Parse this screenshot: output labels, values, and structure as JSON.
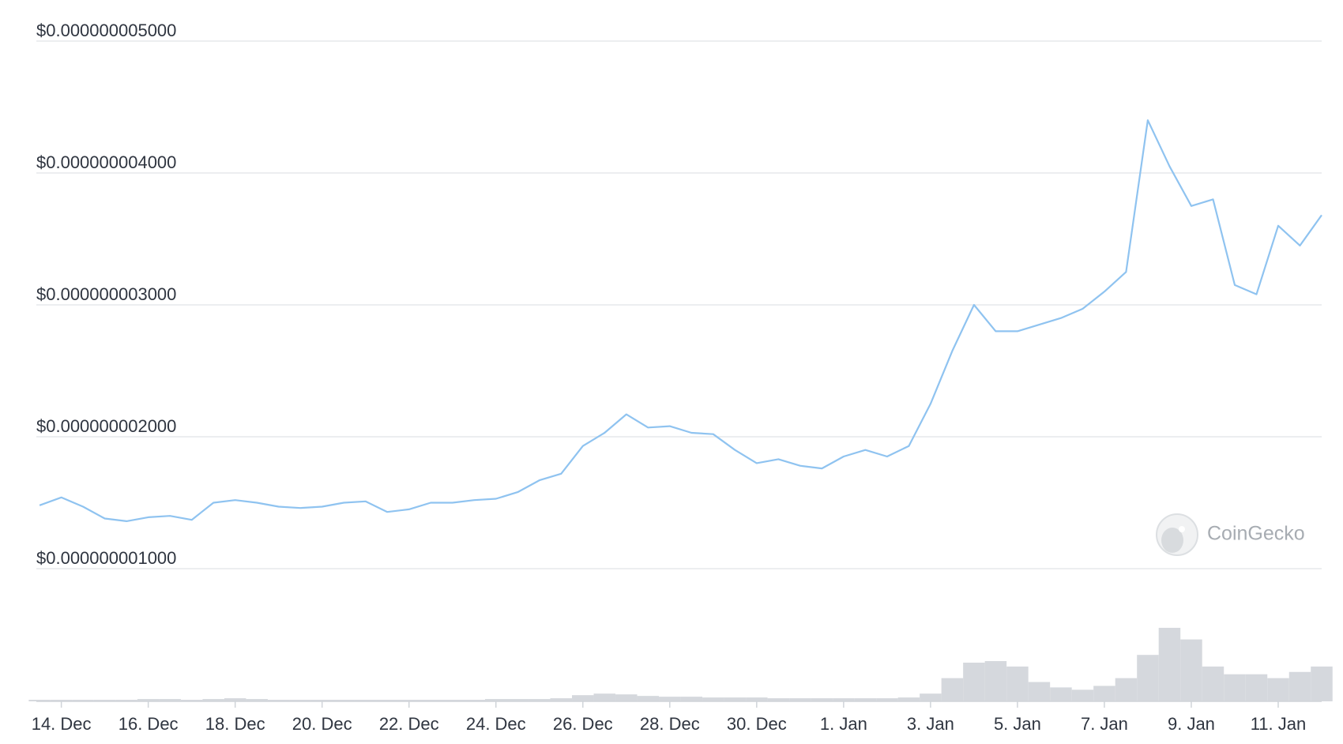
{
  "chart_data": {
    "type": "line",
    "categories": [
      null,
      "14. Dec",
      null,
      null,
      null,
      "16. Dec",
      null,
      null,
      null,
      "18. Dec",
      null,
      null,
      null,
      "20. Dec",
      null,
      null,
      null,
      "22. Dec",
      null,
      null,
      null,
      "24. Dec",
      null,
      null,
      null,
      "26. Dec",
      null,
      null,
      null,
      "28. Dec",
      null,
      null,
      null,
      "30. Dec",
      null,
      null,
      null,
      "1. Jan",
      null,
      null,
      null,
      "3. Jan",
      null,
      null,
      null,
      "5. Jan",
      null,
      null,
      null,
      "7. Jan",
      null,
      null,
      null,
      "9. Jan",
      null,
      null,
      null,
      "11. Jan",
      null,
      null
    ],
    "series": [
      {
        "color": "#8fc3f0",
        "values": [
          1.48e-09,
          1.54e-09,
          1.47e-09,
          1.38e-09,
          1.36e-09,
          1.39e-09,
          1.4e-09,
          1.37e-09,
          1.5e-09,
          1.52e-09,
          1.5e-09,
          1.47e-09,
          1.46e-09,
          1.47e-09,
          1.5e-09,
          1.51e-09,
          1.43e-09,
          1.45e-09,
          1.5e-09,
          1.5e-09,
          1.52e-09,
          1.53e-09,
          1.58e-09,
          1.67e-09,
          1.72e-09,
          1.93e-09,
          2.03e-09,
          2.17e-09,
          2.07e-09,
          2.08e-09,
          2.03e-09,
          2.02e-09,
          1.9e-09,
          1.8e-09,
          1.83e-09,
          1.78e-09,
          1.76e-09,
          1.85e-09,
          1.9e-09,
          1.85e-09,
          1.93e-09,
          2.25e-09,
          2.65e-09,
          3e-09,
          2.8e-09,
          2.8e-09,
          2.85e-09,
          2.9e-09,
          2.97e-09,
          3.1e-09,
          3.25e-09,
          4.4e-09,
          4.05e-09,
          3.75e-09,
          3.8e-09,
          3.15e-09,
          3.08e-09,
          3.6e-09,
          3.45e-09,
          3.68e-09
        ]
      }
    ],
    "volume": {
      "color": "#d5d8dd",
      "ylim": [
        0,
        100
      ],
      "values": [
        2,
        2,
        2,
        2,
        2,
        3,
        3,
        2,
        3,
        4,
        3,
        2,
        2,
        2,
        2,
        2,
        2,
        2,
        2,
        2,
        2,
        3,
        3,
        3,
        4,
        8,
        10,
        9,
        7,
        6,
        6,
        5,
        5,
        5,
        4,
        4,
        4,
        4,
        4,
        4,
        5,
        10,
        30,
        50,
        52,
        45,
        25,
        18,
        15,
        20,
        30,
        60,
        95,
        80,
        45,
        35,
        35,
        30,
        38,
        45
      ]
    },
    "ylim": [
      1e-09,
      5e-09
    ],
    "yticks": [
      {
        "value": 1e-09,
        "label": "$0.000000001000"
      },
      {
        "value": 2e-09,
        "label": "$0.000000002000"
      },
      {
        "value": 3e-09,
        "label": "$0.000000003000"
      },
      {
        "value": 4e-09,
        "label": "$0.000000004000"
      },
      {
        "value": 5e-09,
        "label": "$0.000000005000"
      }
    ],
    "grid": true,
    "watermark": "CoinGecko"
  }
}
